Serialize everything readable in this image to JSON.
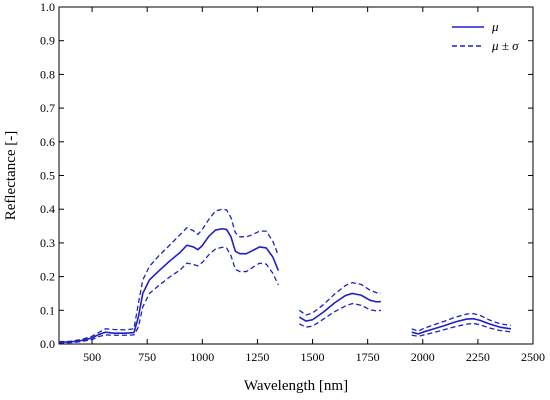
{
  "chart_data": {
    "type": "line",
    "xlabel": "Wavelength [nm]",
    "ylabel": "Reflectance [-]",
    "xlim": [
      350,
      2500
    ],
    "ylim": [
      0,
      1.0
    ],
    "x_ticks": [
      500,
      750,
      1000,
      1250,
      1500,
      1750,
      2000,
      2250,
      2500
    ],
    "x_tick_labels": [
      "500",
      "750",
      "1000",
      "1250",
      "1500",
      "1750",
      "2000",
      "2250",
      "2500"
    ],
    "y_ticks": [
      0,
      0.1,
      0.2,
      0.3,
      0.4,
      0.5,
      0.6,
      0.7,
      0.8,
      0.9,
      1.0
    ],
    "y_tick_labels": [
      "0.0",
      "0.1",
      "0.2",
      "0.3",
      "0.4",
      "0.5",
      "0.6",
      "0.7",
      "0.8",
      "0.9",
      "1.0"
    ],
    "grid": false,
    "legend_position": "top-right",
    "color": "#1f1fc8",
    "legend": [
      {
        "label": "μ",
        "style": "solid"
      },
      {
        "label": "μ ± σ",
        "style": "dashed"
      }
    ],
    "series": [
      {
        "name": "μ",
        "style": "solid",
        "segments": [
          [
            [
              350,
              0.005
            ],
            [
              400,
              0.006
            ],
            [
              450,
              0.01
            ],
            [
              500,
              0.018
            ],
            [
              530,
              0.028
            ],
            [
              560,
              0.035
            ],
            [
              600,
              0.032
            ],
            [
              650,
              0.032
            ],
            [
              690,
              0.034
            ],
            [
              710,
              0.08
            ],
            [
              730,
              0.15
            ],
            [
              760,
              0.19
            ],
            [
              800,
              0.215
            ],
            [
              850,
              0.245
            ],
            [
              900,
              0.272
            ],
            [
              930,
              0.293
            ],
            [
              960,
              0.288
            ],
            [
              980,
              0.28
            ],
            [
              1000,
              0.292
            ],
            [
              1030,
              0.32
            ],
            [
              1060,
              0.338
            ],
            [
              1090,
              0.342
            ],
            [
              1110,
              0.34
            ],
            [
              1130,
              0.318
            ],
            [
              1150,
              0.275
            ],
            [
              1170,
              0.268
            ],
            [
              1200,
              0.268
            ],
            [
              1230,
              0.278
            ],
            [
              1260,
              0.288
            ],
            [
              1290,
              0.285
            ],
            [
              1320,
              0.258
            ],
            [
              1345,
              0.218
            ]
          ],
          [
            [
              1440,
              0.08
            ],
            [
              1470,
              0.068
            ],
            [
              1500,
              0.072
            ],
            [
              1550,
              0.095
            ],
            [
              1600,
              0.122
            ],
            [
              1650,
              0.144
            ],
            [
              1680,
              0.15
            ],
            [
              1720,
              0.145
            ],
            [
              1760,
              0.13
            ],
            [
              1790,
              0.125
            ],
            [
              1810,
              0.126
            ]
          ],
          [
            [
              1950,
              0.035
            ],
            [
              1980,
              0.03
            ],
            [
              2000,
              0.035
            ],
            [
              2050,
              0.045
            ],
            [
              2100,
              0.055
            ],
            [
              2150,
              0.066
            ],
            [
              2200,
              0.074
            ],
            [
              2230,
              0.075
            ],
            [
              2260,
              0.07
            ],
            [
              2300,
              0.06
            ],
            [
              2350,
              0.05
            ],
            [
              2400,
              0.045
            ]
          ]
        ]
      },
      {
        "name": "μ + σ",
        "style": "dashed",
        "segments": [
          [
            [
              350,
              0.007
            ],
            [
              400,
              0.008
            ],
            [
              450,
              0.013
            ],
            [
              500,
              0.023
            ],
            [
              530,
              0.034
            ],
            [
              560,
              0.045
            ],
            [
              600,
              0.043
            ],
            [
              650,
              0.042
            ],
            [
              690,
              0.045
            ],
            [
              710,
              0.12
            ],
            [
              730,
              0.19
            ],
            [
              760,
              0.23
            ],
            [
              800,
              0.26
            ],
            [
              850,
              0.292
            ],
            [
              900,
              0.325
            ],
            [
              930,
              0.345
            ],
            [
              960,
              0.336
            ],
            [
              980,
              0.325
            ],
            [
              1000,
              0.34
            ],
            [
              1030,
              0.37
            ],
            [
              1060,
              0.395
            ],
            [
              1090,
              0.4
            ],
            [
              1110,
              0.398
            ],
            [
              1130,
              0.375
            ],
            [
              1150,
              0.33
            ],
            [
              1170,
              0.318
            ],
            [
              1200,
              0.318
            ],
            [
              1230,
              0.325
            ],
            [
              1260,
              0.335
            ],
            [
              1290,
              0.335
            ],
            [
              1320,
              0.305
            ],
            [
              1345,
              0.262
            ]
          ],
          [
            [
              1440,
              0.1
            ],
            [
              1470,
              0.086
            ],
            [
              1500,
              0.092
            ],
            [
              1550,
              0.117
            ],
            [
              1600,
              0.148
            ],
            [
              1650,
              0.174
            ],
            [
              1680,
              0.182
            ],
            [
              1720,
              0.177
            ],
            [
              1760,
              0.16
            ],
            [
              1790,
              0.152
            ],
            [
              1810,
              0.152
            ]
          ],
          [
            [
              1950,
              0.045
            ],
            [
              1980,
              0.038
            ],
            [
              2000,
              0.045
            ],
            [
              2050,
              0.057
            ],
            [
              2100,
              0.068
            ],
            [
              2150,
              0.08
            ],
            [
              2200,
              0.089
            ],
            [
              2230,
              0.09
            ],
            [
              2260,
              0.085
            ],
            [
              2300,
              0.072
            ],
            [
              2350,
              0.06
            ],
            [
              2400,
              0.055
            ]
          ]
        ]
      },
      {
        "name": "μ − σ",
        "style": "dashed",
        "segments": [
          [
            [
              350,
              0.003
            ],
            [
              400,
              0.004
            ],
            [
              450,
              0.007
            ],
            [
              500,
              0.013
            ],
            [
              530,
              0.022
            ],
            [
              560,
              0.027
            ],
            [
              600,
              0.026
            ],
            [
              650,
              0.026
            ],
            [
              690,
              0.027
            ],
            [
              710,
              0.05
            ],
            [
              730,
              0.11
            ],
            [
              760,
              0.15
            ],
            [
              800,
              0.172
            ],
            [
              850,
              0.198
            ],
            [
              900,
              0.22
            ],
            [
              930,
              0.24
            ],
            [
              960,
              0.236
            ],
            [
              980,
              0.232
            ],
            [
              1000,
              0.242
            ],
            [
              1030,
              0.265
            ],
            [
              1060,
              0.282
            ],
            [
              1090,
              0.287
            ],
            [
              1110,
              0.285
            ],
            [
              1130,
              0.262
            ],
            [
              1150,
              0.222
            ],
            [
              1170,
              0.215
            ],
            [
              1200,
              0.215
            ],
            [
              1230,
              0.228
            ],
            [
              1260,
              0.24
            ],
            [
              1290,
              0.237
            ],
            [
              1320,
              0.21
            ],
            [
              1345,
              0.175
            ]
          ],
          [
            [
              1440,
              0.06
            ],
            [
              1470,
              0.05
            ],
            [
              1500,
              0.053
            ],
            [
              1550,
              0.074
            ],
            [
              1600,
              0.096
            ],
            [
              1650,
              0.113
            ],
            [
              1680,
              0.12
            ],
            [
              1720,
              0.115
            ],
            [
              1760,
              0.102
            ],
            [
              1790,
              0.098
            ],
            [
              1810,
              0.1
            ]
          ],
          [
            [
              1950,
              0.026
            ],
            [
              1980,
              0.023
            ],
            [
              2000,
              0.026
            ],
            [
              2050,
              0.034
            ],
            [
              2100,
              0.043
            ],
            [
              2150,
              0.052
            ],
            [
              2200,
              0.059
            ],
            [
              2230,
              0.061
            ],
            [
              2260,
              0.057
            ],
            [
              2300,
              0.048
            ],
            [
              2350,
              0.04
            ],
            [
              2400,
              0.036
            ]
          ]
        ]
      }
    ]
  }
}
